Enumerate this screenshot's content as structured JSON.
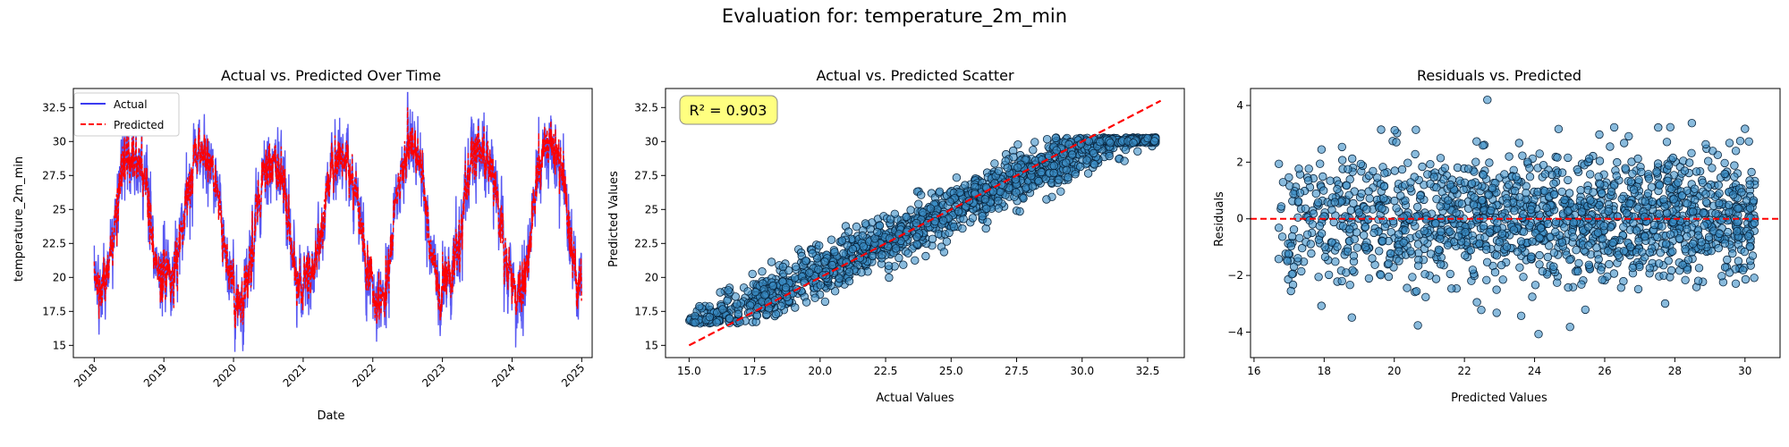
{
  "figure": {
    "suptitle": "Evaluation for: temperature_2m_min"
  },
  "colors": {
    "actual": "#3b3bf0",
    "predicted": "#ff0000",
    "scatter_fill": "#3a8dc6",
    "scatter_edge": "#08243d",
    "r2_box": "#ffff80"
  },
  "chart_data": [
    {
      "type": "line",
      "title": "Actual vs. Predicted Over Time",
      "xlabel": "Date",
      "ylabel": "temperature_2m_min",
      "xlim": [
        2017.7,
        2025.15
      ],
      "ylim": [
        14.1,
        33.9
      ],
      "xticks": [
        "2018",
        "2019",
        "2020",
        "2021",
        "2022",
        "2023",
        "2024",
        "2025"
      ],
      "yticks": [
        15.0,
        17.5,
        20.0,
        22.5,
        25.0,
        27.5,
        30.0,
        32.5
      ],
      "grid": false,
      "legend_position": "upper-left",
      "seasonal_peaks": [
        29.2,
        29.5,
        28.5,
        28.8,
        29.6,
        29.3,
        30.2
      ],
      "seasonal_troughs": [
        19.3,
        20.0,
        18.4,
        20.5,
        18.0,
        20.2,
        19.0
      ],
      "series": [
        {
          "name": "Actual",
          "color": "#3b3bf0",
          "style": "solid",
          "noise": 1.6
        },
        {
          "name": "Predicted",
          "color": "#ff0000",
          "style": "dashed",
          "noise": 0.6
        }
      ]
    },
    {
      "type": "scatter",
      "title": "Actual vs. Predicted Scatter",
      "xlabel": "Actual Values",
      "ylabel": "Predicted Values",
      "xlim": [
        14.1,
        33.9
      ],
      "ylim": [
        14.1,
        33.9
      ],
      "xticks": [
        15.0,
        17.5,
        20.0,
        22.5,
        25.0,
        27.5,
        30.0,
        32.5
      ],
      "yticks": [
        15.0,
        17.5,
        20.0,
        22.5,
        25.0,
        27.5,
        30.0,
        32.5
      ],
      "annotation": "R² = 0.903",
      "reference_line": {
        "from": [
          15.0,
          15.0
        ],
        "to": [
          33.0,
          33.0
        ],
        "color": "#ff0000",
        "style": "dashed"
      },
      "point_count": 1500
    },
    {
      "type": "scatter",
      "title": "Residuals vs. Predicted",
      "xlabel": "Predicted Values",
      "ylabel": "Residuals",
      "xlim": [
        15.9,
        31.0
      ],
      "ylim": [
        -4.9,
        4.6
      ],
      "xticks": [
        16,
        18,
        20,
        22,
        24,
        26,
        28,
        30
      ],
      "yticks": [
        -4,
        -2,
        0,
        2,
        4
      ],
      "ytick_labels": [
        "−4",
        "−2",
        "0",
        "2",
        "4"
      ],
      "reference_line": {
        "y": 0,
        "color": "#ff0000",
        "style": "dashed"
      },
      "point_count": 1500
    }
  ]
}
